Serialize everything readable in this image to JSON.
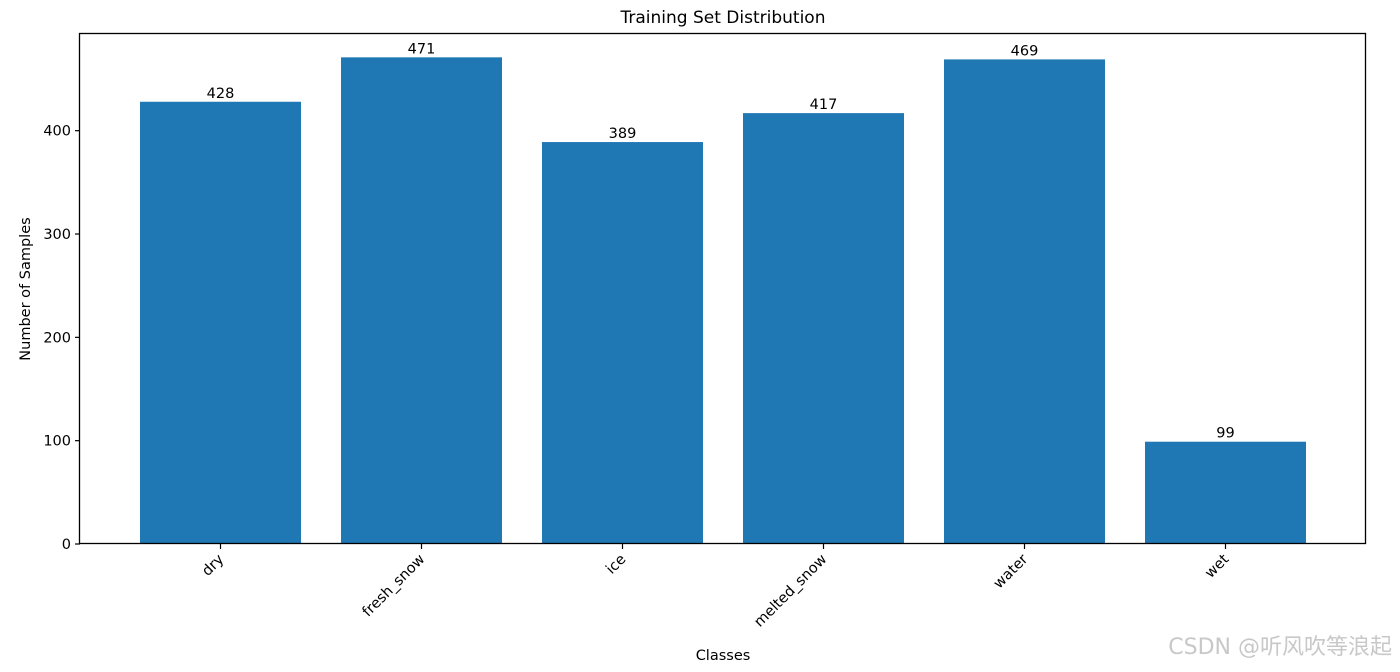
{
  "chart_data": {
    "type": "bar",
    "title": "Training Set Distribution",
    "xlabel": "Classes",
    "ylabel": "Number of Samples",
    "categories": [
      "dry",
      "fresh_snow",
      "ice",
      "melted_snow",
      "water",
      "wet"
    ],
    "values": [
      428,
      471,
      389,
      417,
      469,
      99
    ],
    "value_labels": [
      "428",
      "471",
      "389",
      "417",
      "469",
      "99"
    ],
    "ylim": [
      0,
      494.55
    ],
    "yticks": [
      0,
      100,
      200,
      300,
      400
    ],
    "ytick_labels": [
      "0",
      "100",
      "200",
      "300",
      "400"
    ],
    "xtick_rotation": "45 degrees",
    "bar_color": "#1f77b4",
    "grid": false,
    "legend": "none"
  },
  "watermark": "CSDN @听风吹等浪起"
}
